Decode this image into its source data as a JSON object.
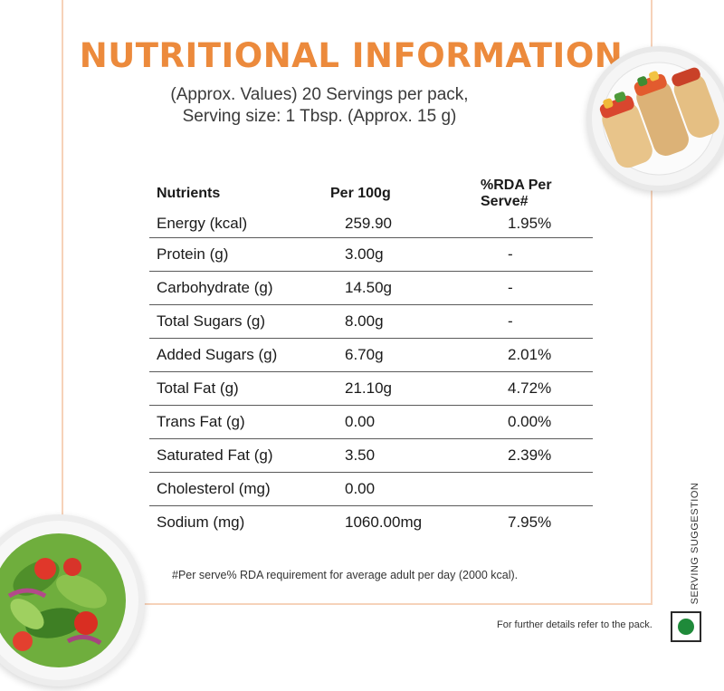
{
  "header": {
    "title": "NUTRITIONAL INFORMATION",
    "subtitle_line1": "(Approx. Values) 20 Servings per pack,",
    "subtitle_line2": "Serving size: 1 Tbsp. (Approx. 15 g)"
  },
  "table": {
    "columns": [
      "Nutrients",
      "Per 100g",
      "%RDA Per Serve#"
    ],
    "rows": [
      {
        "nutrient": "Energy (kcal)",
        "per100": "259.90",
        "rda": "1.95%"
      },
      {
        "nutrient": "Protein (g)",
        "per100": "3.00g",
        "rda": "-"
      },
      {
        "nutrient": "Carbohydrate (g)",
        "per100": "14.50g",
        "rda": "-"
      },
      {
        "nutrient": "Total Sugars (g)",
        "per100": "8.00g",
        "rda": "-"
      },
      {
        "nutrient": "Added Sugars (g)",
        "per100": "6.70g",
        "rda": "2.01%"
      },
      {
        "nutrient": "Total Fat (g)",
        "per100": "21.10g",
        "rda": "4.72%"
      },
      {
        "nutrient": "Trans Fat (g)",
        "per100": "0.00",
        "rda": "0.00%"
      },
      {
        "nutrient": "Saturated Fat (g)",
        "per100": "3.50",
        "rda": "2.39%"
      },
      {
        "nutrient": "Cholesterol (mg)",
        "per100": "0.00",
        "rda": ""
      },
      {
        "nutrient": "Sodium (mg)",
        "per100": "1060.00mg",
        "rda": "7.95%"
      }
    ]
  },
  "footnote": "#Per serve% RDA requirement for average adult per day (2000 kcal).",
  "details_text": "For further details refer to the pack.",
  "side_label": "SERVING SUGGESTION",
  "colors": {
    "title": "#ec8a3c",
    "header_bg": "#fcd8c0",
    "panel_border": "#f6d2b9",
    "veg_mark": "#1f8a3a"
  },
  "images": {
    "top_right": "wraps-on-plate",
    "bottom_left": "salad-bowl"
  }
}
